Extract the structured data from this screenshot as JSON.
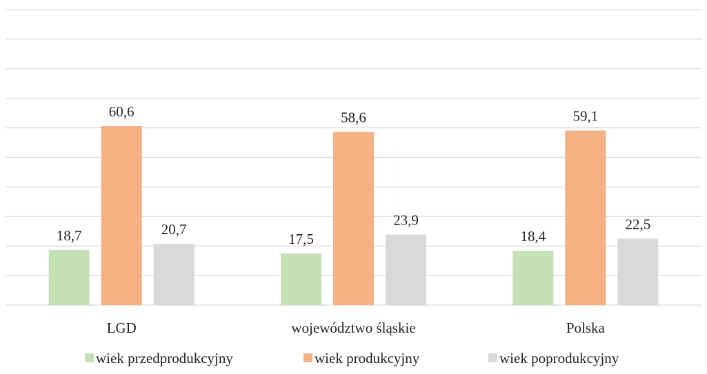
{
  "chart_data": {
    "type": "bar",
    "title": "",
    "xlabel": "",
    "ylabel": "",
    "categories": [
      "LGD",
      "województwo śląskie",
      "Polska"
    ],
    "series": [
      {
        "name": "wiek przedprodukcyjny",
        "values": [
          18.7,
          17.5,
          18.4
        ],
        "color": "#c5e0b4"
      },
      {
        "name": "wiek produkcyjny",
        "values": [
          60.6,
          58.6,
          59.1
        ],
        "color": "#f4b183"
      },
      {
        "name": "wiek poprodukcyjny",
        "values": [
          20.7,
          23.9,
          22.5
        ],
        "color": "#d9d9d9"
      }
    ],
    "ylim": [
      0,
      100
    ],
    "gridlines": true,
    "gridline_color": "#d9d9d9",
    "legend_position": "bottom",
    "decimal_separator": ","
  }
}
